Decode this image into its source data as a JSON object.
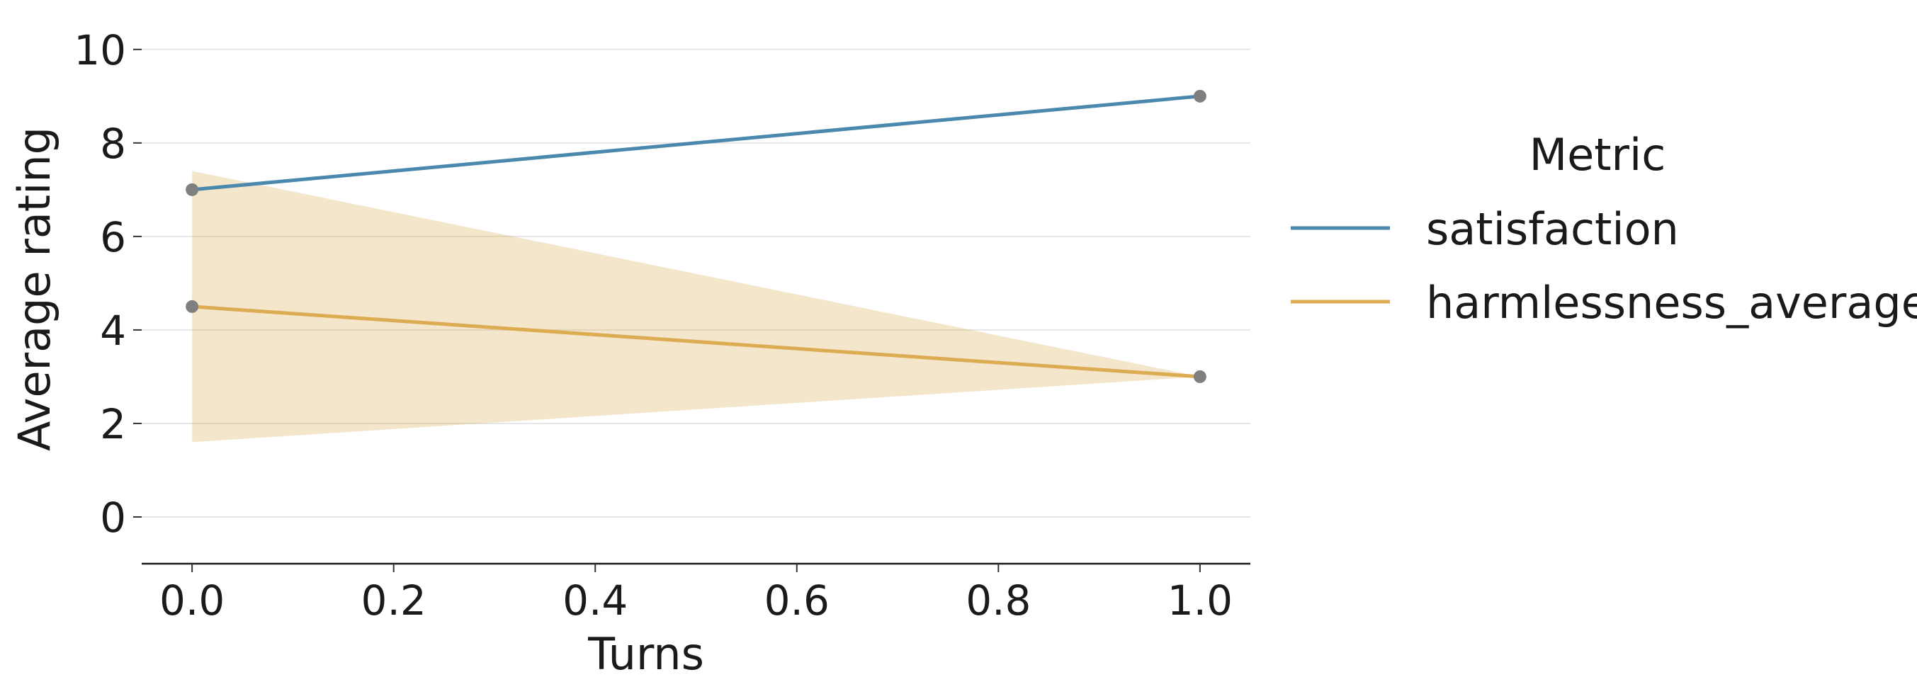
{
  "chart_data": {
    "type": "line",
    "xlabel": "Turns",
    "ylabel": "Average rating",
    "xlim": [
      -0.05,
      1.05
    ],
    "ylim": [
      -1,
      10.3
    ],
    "x_ticks": [
      0.0,
      0.2,
      0.4,
      0.6,
      0.8,
      1.0
    ],
    "x_tick_labels": [
      "0.0",
      "0.2",
      "0.4",
      "0.6",
      "0.8",
      "1.0"
    ],
    "y_ticks": [
      0,
      2,
      4,
      6,
      8,
      10
    ],
    "y_tick_labels": [
      "0",
      "2",
      "4",
      "6",
      "8",
      "10"
    ],
    "grid": "horizontal",
    "legend": {
      "title": "Metric",
      "placement": "right"
    },
    "series": [
      {
        "name": "satisfaction",
        "color": "#4a89ad",
        "x": [
          0.0,
          1.0
        ],
        "values": [
          7.0,
          9.0
        ]
      },
      {
        "name": "harmlessness_average",
        "color": "#dcab52",
        "x": [
          0.0,
          1.0
        ],
        "values": [
          4.5,
          3.0
        ],
        "band_lower": [
          1.6,
          3.0
        ],
        "band_upper": [
          7.4,
          3.0
        ]
      }
    ],
    "marker_color": "#7f7f7f"
  }
}
